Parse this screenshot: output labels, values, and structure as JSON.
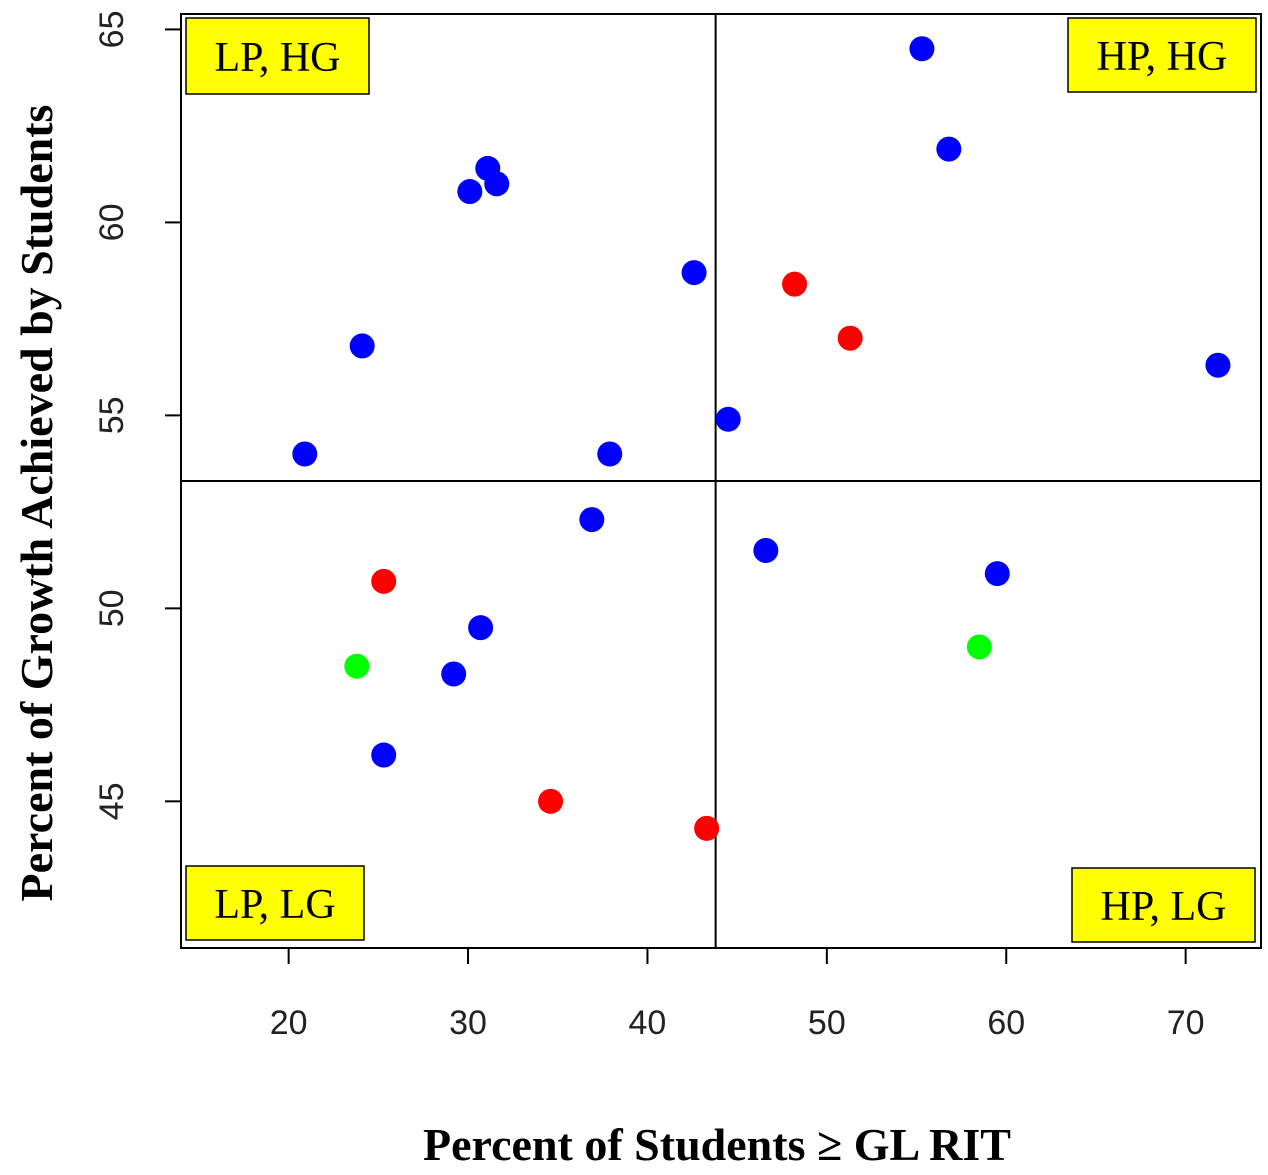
{
  "chart_data": {
    "type": "scatter",
    "xlabel": "Percent of Students ≥ GL RIT",
    "ylabel": "Percent of Growth Achieved by Students",
    "xlim": [
      14,
      74.2
    ],
    "ylim": [
      41.2,
      65.4
    ],
    "xticks": [
      20,
      30,
      40,
      50,
      60,
      70
    ],
    "yticks": [
      45,
      50,
      55,
      60,
      65
    ],
    "grid": false,
    "reference_lines": {
      "x": 43.8,
      "y": 53.3
    },
    "quadrant_labels": {
      "top_left": "LP, HG",
      "top_right": "HP, HG",
      "bottom_left": "LP, LG",
      "bottom_right": "HP, LG"
    },
    "colors": {
      "blue": "#0000ff",
      "red": "#ff0000",
      "green": "#00ff00",
      "quadrant_box": "#ffff00"
    },
    "series": [
      {
        "color": "blue",
        "points": [
          [
            55.3,
            64.5
          ],
          [
            56.8,
            61.9
          ],
          [
            31.1,
            61.4
          ],
          [
            30.1,
            60.8
          ],
          [
            31.6,
            61.0
          ],
          [
            42.6,
            58.7
          ],
          [
            24.1,
            56.8
          ],
          [
            71.8,
            56.3
          ],
          [
            44.5,
            54.9
          ],
          [
            20.9,
            54.0
          ],
          [
            37.9,
            54.0
          ],
          [
            36.9,
            52.3
          ],
          [
            46.6,
            51.5
          ],
          [
            59.5,
            50.9
          ],
          [
            30.7,
            49.5
          ],
          [
            29.2,
            48.3
          ],
          [
            25.3,
            46.2
          ]
        ]
      },
      {
        "color": "red",
        "points": [
          [
            48.2,
            58.4
          ],
          [
            51.3,
            57.0
          ],
          [
            25.3,
            50.7
          ],
          [
            34.6,
            45.0
          ],
          [
            43.3,
            44.3
          ]
        ]
      },
      {
        "color": "green",
        "points": [
          [
            23.8,
            48.5
          ],
          [
            58.5,
            49.0
          ]
        ]
      }
    ]
  }
}
